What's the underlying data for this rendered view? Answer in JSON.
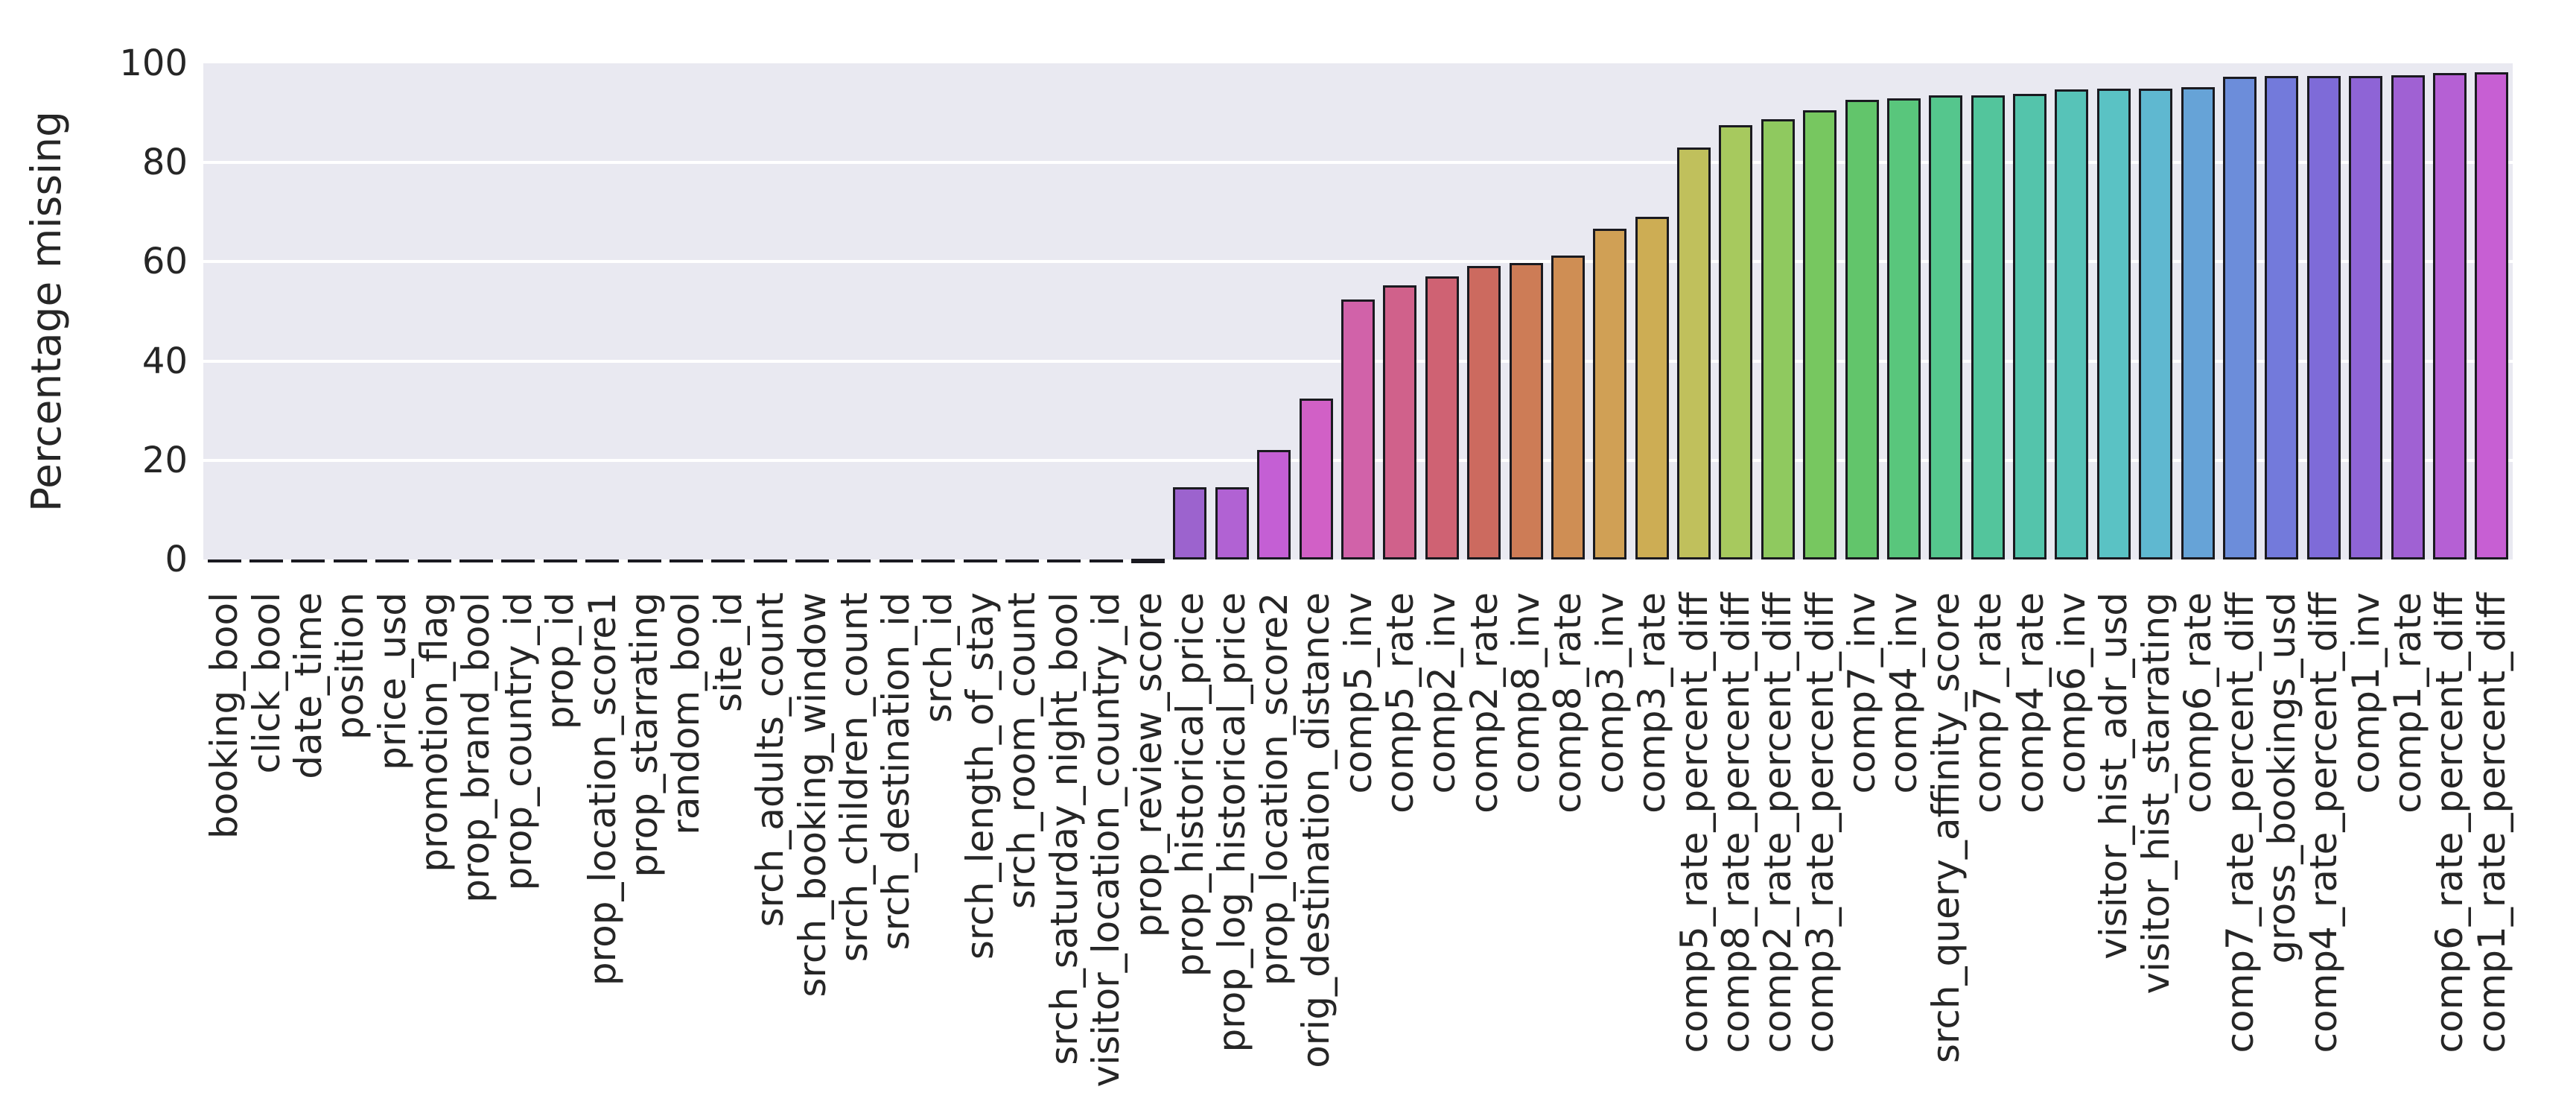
{
  "chart_data": {
    "type": "bar",
    "title": "",
    "ylabel": "Percentage missing",
    "xlabel": "",
    "ylim": [
      0,
      100
    ],
    "yticks": [
      0,
      20,
      40,
      60,
      80,
      100
    ],
    "grid": "horizontal-white-lines",
    "legend_position": "none",
    "plot_bg": "#e9e9f1",
    "figure_bg": "#ffffff",
    "bar_edge_color": "#1a1a20",
    "tick_color": "#262626",
    "categories": [
      "booking_bool",
      "click_bool",
      "date_time",
      "position",
      "price_usd",
      "promotion_flag",
      "prop_brand_bool",
      "prop_country_id",
      "prop_id",
      "prop_location_score1",
      "prop_starrating",
      "random_bool",
      "site_id",
      "srch_adults_count",
      "srch_booking_window",
      "srch_children_count",
      "srch_destination_id",
      "srch_id",
      "srch_length_of_stay",
      "srch_room_count",
      "srch_saturday_night_bool",
      "visitor_location_country_id",
      "prop_review_score",
      "prop_historical_price",
      "prop_log_historical_price",
      "prop_location_score2",
      "orig_destination_distance",
      "comp5_inv",
      "comp5_rate",
      "comp2_inv",
      "comp2_rate",
      "comp8_inv",
      "comp8_rate",
      "comp3_inv",
      "comp3_rate",
      "comp5_rate_percent_diff",
      "comp8_rate_percent_diff",
      "comp2_rate_percent_diff",
      "comp3_rate_percent_diff",
      "comp7_inv",
      "comp4_inv",
      "srch_query_affinity_score",
      "comp7_rate",
      "comp4_rate",
      "comp6_inv",
      "visitor_hist_adr_usd",
      "visitor_hist_starrating",
      "comp6_rate",
      "comp7_rate_percent_diff",
      "gross_bookings_usd",
      "comp4_rate_percent_diff",
      "comp1_inv",
      "comp1_rate",
      "comp6_rate_percent_diff",
      "comp1_rate_percent_diff"
    ],
    "values": [
      0,
      0,
      0,
      0,
      0,
      0,
      0,
      0,
      0,
      0,
      0,
      0,
      0,
      0,
      0,
      0,
      0,
      0,
      0,
      0,
      0,
      0,
      0.15,
      14.5,
      14.5,
      22.0,
      32.4,
      52.4,
      55.2,
      57.0,
      59.2,
      59.8,
      61.3,
      66.7,
      69.1,
      83.0,
      87.6,
      88.8,
      90.5,
      92.6,
      93.0,
      93.6,
      93.6,
      93.8,
      94.7,
      94.9,
      94.9,
      95.2,
      97.3,
      97.4,
      97.4,
      97.5,
      97.6,
      98.1,
      98.2
    ],
    "bar_colors": [
      "#ce8264",
      "#ce9664",
      "#cea964",
      "#cebc64",
      "#ccce64",
      "#b9ce64",
      "#a6ce64",
      "#91ce64",
      "#7cce64",
      "#69ce64",
      "#64ce73",
      "#64ce86",
      "#64ce99",
      "#64ceac",
      "#64cec0",
      "#64c8ce",
      "#64b5ce",
      "#64a0ce",
      "#648cce",
      "#6479ce",
      "#6466ce",
      "#7664ce",
      "#8964ce",
      "#9c63ce",
      "#b162d3",
      "#c45fd4",
      "#d160c6",
      "#d162a9",
      "#d0618b",
      "#cf6273",
      "#cc6a5f",
      "#cd7c56",
      "#cf8e54",
      "#d0a055",
      "#cdad54",
      "#c0c05c",
      "#a7c95e",
      "#8fc95f",
      "#77c760",
      "#62c56b",
      "#59c67c",
      "#55c68d",
      "#53c59c",
      "#54c4ab",
      "#57c3b8",
      "#5ac2c4",
      "#5fb8d0",
      "#66a3d7",
      "#6c8dda",
      "#737adb",
      "#7e6bd8",
      "#8e64d6",
      "#a061d3",
      "#b560d4",
      "#c75fd3"
    ]
  }
}
